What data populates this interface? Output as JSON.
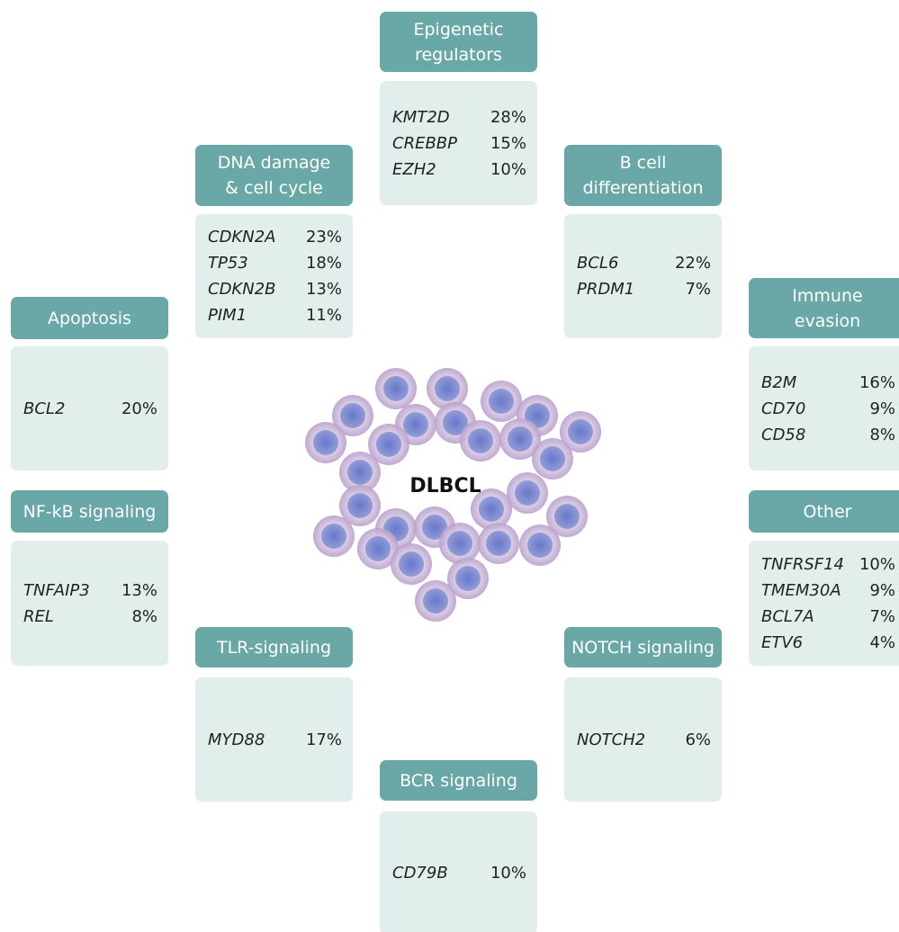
{
  "center": {
    "label": "DLBCL"
  },
  "groups": [
    {
      "title": [
        "Epigenetic",
        "regulators"
      ],
      "genes": [
        {
          "name": "KMT2D",
          "pct": "28%"
        },
        {
          "name": "CREBBP",
          "pct": "15%"
        },
        {
          "name": "EZH2",
          "pct": "10%"
        }
      ]
    },
    {
      "title": [
        "DNA damage",
        "& cell cycle"
      ],
      "genes": [
        {
          "name": "CDKN2A",
          "pct": "23%"
        },
        {
          "name": "TP53",
          "pct": "18%"
        },
        {
          "name": "CDKN2B",
          "pct": "13%"
        },
        {
          "name": "PIM1",
          "pct": "11%"
        }
      ]
    },
    {
      "title": [
        "B cell",
        "differentiation"
      ],
      "genes": [
        {
          "name": "BCL6",
          "pct": "22%"
        },
        {
          "name": "PRDM1",
          "pct": "7%"
        }
      ]
    },
    {
      "title": [
        "Apoptosis"
      ],
      "genes": [
        {
          "name": "BCL2",
          "pct": "20%"
        }
      ]
    },
    {
      "title": [
        "Immune",
        "evasion"
      ],
      "genes": [
        {
          "name": "B2M",
          "pct": "16%"
        },
        {
          "name": "CD70",
          "pct": "9%"
        },
        {
          "name": "CD58",
          "pct": "8%"
        }
      ]
    },
    {
      "title": [
        "NF-kB signaling"
      ],
      "genes": [
        {
          "name": "TNFAIP3",
          "pct": "13%"
        },
        {
          "name": "REL",
          "pct": "8%"
        }
      ]
    },
    {
      "title": [
        "Other"
      ],
      "genes": [
        {
          "name": "TNFRSF14",
          "pct": "10%"
        },
        {
          "name": "TMEM30A",
          "pct": "9%"
        },
        {
          "name": "BCL7A",
          "pct": "7%"
        },
        {
          "name": "ETV6",
          "pct": "4%"
        }
      ]
    },
    {
      "title": [
        "TLR-signaling"
      ],
      "genes": [
        {
          "name": "MYD88",
          "pct": "17%"
        }
      ]
    },
    {
      "title": [
        "NOTCH signaling"
      ],
      "genes": [
        {
          "name": "NOTCH2",
          "pct": "6%"
        }
      ]
    },
    {
      "title": [
        "BCR signaling"
      ],
      "genes": [
        {
          "name": "CD79B",
          "pct": "10%"
        }
      ]
    }
  ]
}
